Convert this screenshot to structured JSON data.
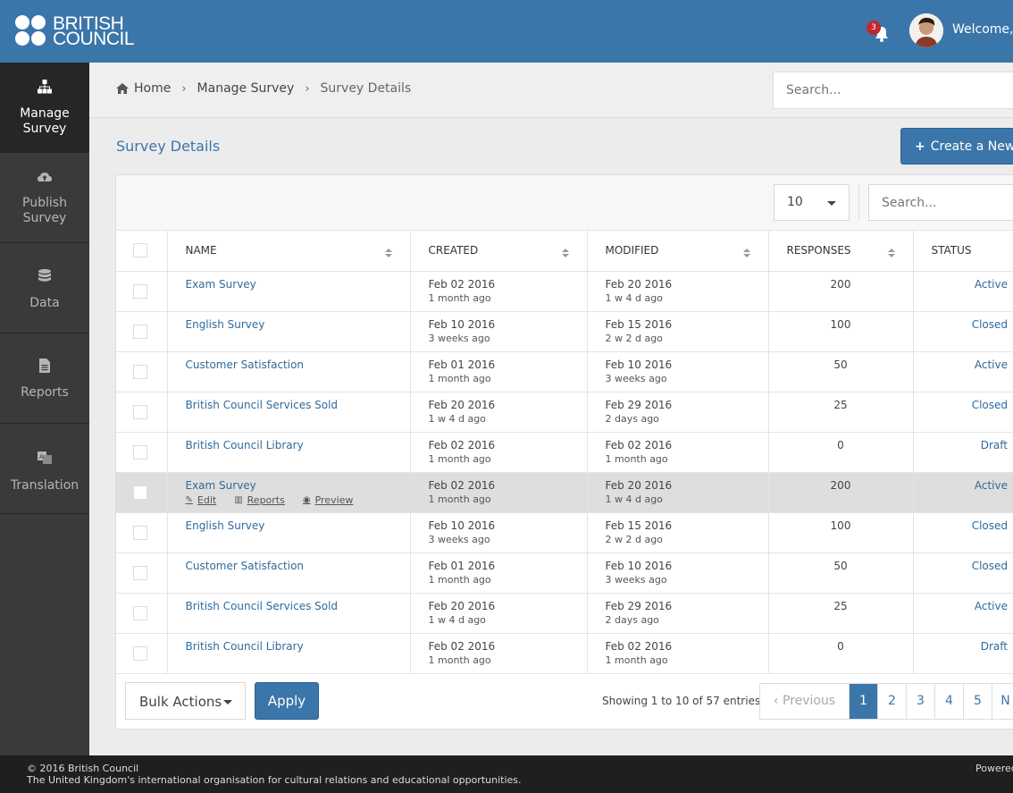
{
  "header": {
    "logo_line1": "BRITISH",
    "logo_line2": "COUNCIL",
    "notification_count": "3",
    "welcome_text": "Welcome,"
  },
  "sidebar": {
    "items": [
      {
        "label_line1": "Manage",
        "label_line2": "Survey",
        "icon": "sitemap-icon",
        "active": true
      },
      {
        "label_line1": "Publish",
        "label_line2": "Survey",
        "icon": "cloud-upload-icon",
        "active": false
      },
      {
        "label_line1": "Data",
        "label_line2": "",
        "icon": "database-icon",
        "active": false
      },
      {
        "label_line1": "Reports",
        "label_line2": "",
        "icon": "file-icon",
        "active": false
      },
      {
        "label_line1": "Translation",
        "label_line2": "",
        "icon": "translate-icon",
        "active": false
      }
    ]
  },
  "breadcrumb": {
    "home": "Home",
    "manage": "Manage Survey",
    "current": "Survey Details"
  },
  "search": {
    "placeholder": "Search..."
  },
  "page": {
    "title": "Survey Details",
    "create_button": "Create a New"
  },
  "table": {
    "page_size": "10",
    "search_placeholder": "Search...",
    "columns": [
      "NAME",
      "CREATED",
      "MODIFIED",
      "RESPONSES",
      "STATUS"
    ],
    "rows": [
      {
        "name": "Exam Survey",
        "created": "Feb 02 2016",
        "created_ago": "1 month ago",
        "modified": "Feb 20 2016",
        "modified_ago": "1 w 4 d ago",
        "responses": "200",
        "status": "Active"
      },
      {
        "name": "English Survey",
        "created": "Feb 10 2016",
        "created_ago": "3 weeks ago",
        "modified": "Feb 15 2016",
        "modified_ago": "2 w 2 d ago",
        "responses": "100",
        "status": "Closed"
      },
      {
        "name": "Customer Satisfaction",
        "created": "Feb 01 2016",
        "created_ago": "1 month ago",
        "modified": "Feb 10 2016",
        "modified_ago": "3 weeks ago",
        "responses": "50",
        "status": "Active"
      },
      {
        "name": "British Council Services Sold",
        "created": "Feb 20 2016",
        "created_ago": "1 w 4 d ago",
        "modified": "Feb 29 2016",
        "modified_ago": "2 days ago",
        "responses": "25",
        "status": "Closed"
      },
      {
        "name": "British Council Library",
        "created": "Feb 02 2016",
        "created_ago": "1 month ago",
        "modified": "Feb 02 2016",
        "modified_ago": "1 month ago",
        "responses": "0",
        "status": "Draft"
      },
      {
        "name": "Exam Survey",
        "created": "Feb 02 2016",
        "created_ago": "1 month ago",
        "modified": "Feb 20 2016",
        "modified_ago": "1 w 4 d ago",
        "responses": "200",
        "status": "Active"
      },
      {
        "name": "English Survey",
        "created": "Feb 10 2016",
        "created_ago": "3 weeks ago",
        "modified": "Feb 15 2016",
        "modified_ago": "2 w 2 d ago",
        "responses": "100",
        "status": "Closed"
      },
      {
        "name": "Customer Satisfaction",
        "created": "Feb 01 2016",
        "created_ago": "1 month ago",
        "modified": "Feb 10 2016",
        "modified_ago": "3 weeks ago",
        "responses": "50",
        "status": "Closed"
      },
      {
        "name": "British Council Services Sold",
        "created": "Feb 20 2016",
        "created_ago": "1 w 4 d ago",
        "modified": "Feb 29 2016",
        "modified_ago": "2 days ago",
        "responses": "25",
        "status": "Active"
      },
      {
        "name": "British Council Library",
        "created": "Feb 02 2016",
        "created_ago": "1 month ago",
        "modified": "Feb 02 2016",
        "modified_ago": "1 month ago",
        "responses": "0",
        "status": "Draft"
      }
    ],
    "row_actions": {
      "edit": "Edit",
      "reports": "Reports",
      "preview": "Preview"
    }
  },
  "footer_bar": {
    "bulk_actions": "Bulk Actions",
    "apply": "Apply",
    "showing": "Showing 1 to 10 of 57 entries",
    "previous": "‹ Previous",
    "pages": [
      "1",
      "2",
      "3",
      "4",
      "5"
    ],
    "next_partial": "N"
  },
  "footer": {
    "copyright": "© 2016 British Council",
    "tagline": "The United Kingdom's international organisation for cultural relations and educational opportunities.",
    "powered": "Powered"
  },
  "colors": {
    "header_blue": "#3b76aa",
    "sidebar_bg": "#3a3a3a",
    "link_blue": "#2f6a9c",
    "badge_red": "#c1272d"
  }
}
